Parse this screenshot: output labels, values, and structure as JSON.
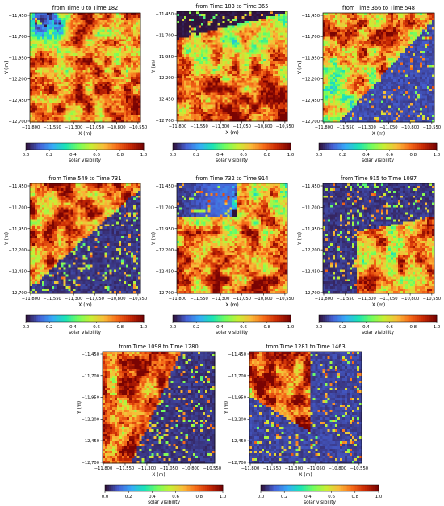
{
  "figure": {
    "colorbar_label": "solar visibility",
    "colorbar_ticks": [
      "0.0",
      "0.2",
      "0.4",
      "0.6",
      "0.8",
      "1.0"
    ],
    "colormap_stops": [
      "#30123b",
      "#4662d7",
      "#36aaf9",
      "#1ae4b6",
      "#72fe5e",
      "#c8ef34",
      "#faba39",
      "#f66b19",
      "#ca2a04",
      "#7a0403"
    ],
    "background_color": "#30123b"
  },
  "chart_data": [
    {
      "type": "heatmap",
      "title": "from Time 0 to Time 182",
      "xlabel": "X (m)",
      "ylabel": "Y (m)",
      "xticks": [
        "−11,800",
        "−11,550",
        "−11,300",
        "−11,050",
        "−10,800",
        "−10,550"
      ],
      "yticks": [
        "−11,450",
        "−11,700",
        "−11,950",
        "−12,200",
        "−12,450",
        "−12,700"
      ],
      "xlim": [
        -11800,
        -10500
      ],
      "ylim": [
        -12700,
        -11400
      ],
      "value_range": [
        0.0,
        1.0
      ],
      "colorbar_label": "solar visibility",
      "dominant_pattern": "mostly high visibility, low region at top-left"
    },
    {
      "type": "heatmap",
      "title": "from Time 183 to Time 365",
      "xlabel": "X (m)",
      "ylabel": "Y (m)",
      "xticks": [
        "−11,800",
        "−11,550",
        "−11,300",
        "−11,050",
        "−10,800",
        "−10,550"
      ],
      "yticks": [
        "−11,450",
        "−11,700",
        "−11,950",
        "−12,200",
        "−12,450",
        "−12,700"
      ],
      "xlim": [
        -11800,
        -10500
      ],
      "ylim": [
        -12700,
        -11400
      ],
      "value_range": [
        0.0,
        1.0
      ],
      "colorbar_label": "solar visibility",
      "dominant_pattern": "low at top, high in lower half"
    },
    {
      "type": "heatmap",
      "title": "from Time 366 to Time 548",
      "xlabel": "X (m)",
      "ylabel": "Y (m)",
      "xticks": [
        "−11,800",
        "−11,550",
        "−11,300",
        "−11,050",
        "−10,800",
        "−10,550"
      ],
      "yticks": [
        "−11,450",
        "−11,700",
        "−11,950",
        "−12,200",
        "−12,450",
        "−12,700"
      ],
      "xlim": [
        -11800,
        -10500
      ],
      "ylim": [
        -12700,
        -11400
      ],
      "value_range": [
        0.0,
        1.0
      ],
      "colorbar_label": "solar visibility",
      "dominant_pattern": "high at top and left, low at right"
    },
    {
      "type": "heatmap",
      "title": "from Time 549 to Time 731",
      "xlabel": "X (m)",
      "ylabel": "Y (m)",
      "xticks": [
        "−11,800",
        "−11,550",
        "−11,300",
        "−11,050",
        "−10,800",
        "−10,550"
      ],
      "yticks": [
        "−11,450",
        "−11,700",
        "−11,950",
        "−12,200",
        "−12,450",
        "−12,700"
      ],
      "xlim": [
        -11800,
        -10500
      ],
      "ylim": [
        -12700,
        -11400
      ],
      "value_range": [
        0.0,
        1.0
      ],
      "colorbar_label": "solar visibility",
      "dominant_pattern": "high at upper-left, low at lower-right"
    },
    {
      "type": "heatmap",
      "title": "from Time 732 to Time 914",
      "xlabel": "X (m)",
      "ylabel": "Y (m)",
      "xticks": [
        "−11,800",
        "−11,550",
        "−11,300",
        "−11,050",
        "−10,800",
        "−10,550"
      ],
      "yticks": [
        "−11,450",
        "−11,700",
        "−11,950",
        "−12,200",
        "−12,450",
        "−12,700"
      ],
      "xlim": [
        -11800,
        -10500
      ],
      "ylim": [
        -12700,
        -11400
      ],
      "value_range": [
        0.0,
        1.0
      ],
      "colorbar_label": "solar visibility",
      "dominant_pattern": "low at top-left, high in lower half"
    },
    {
      "type": "heatmap",
      "title": "from Time 915 to Time 1097",
      "xlabel": "X (m)",
      "ylabel": "Y (m)",
      "xticks": [
        "−11,800",
        "−11,550",
        "−11,300",
        "−11,050",
        "−10,800",
        "−10,550"
      ],
      "yticks": [
        "−11,450",
        "−11,700",
        "−11,950",
        "−12,200",
        "−12,450",
        "−12,700"
      ],
      "xlim": [
        -11800,
        -10500
      ],
      "ylim": [
        -12700,
        -11400
      ],
      "value_range": [
        0.0,
        1.0
      ],
      "colorbar_label": "solar visibility",
      "dominant_pattern": "mostly low, high in lower-right"
    },
    {
      "type": "heatmap",
      "title": "from Time 1098 to Time 1280",
      "xlabel": "X (m)",
      "ylabel": "Y (m)",
      "xticks": [
        "−11,800",
        "−11,550",
        "−11,300",
        "−11,050",
        "−10,800",
        "−10,550"
      ],
      "yticks": [
        "−11,450",
        "−11,700",
        "−11,950",
        "−12,200",
        "−12,450",
        "−12,700"
      ],
      "xlim": [
        -11800,
        -10500
      ],
      "ylim": [
        -12700,
        -11400
      ],
      "value_range": [
        0.0,
        1.0
      ],
      "colorbar_label": "solar visibility",
      "dominant_pattern": "high on left half, low on right half"
    },
    {
      "type": "heatmap",
      "title": "from Time 1281 to Time 1463",
      "xlabel": "X (m)",
      "ylabel": "Y (m)",
      "xticks": [
        "−11,800",
        "−11,550",
        "−11,300",
        "−11,050",
        "−10,800",
        "−10,550"
      ],
      "yticks": [
        "−11,450",
        "−11,700",
        "−11,950",
        "−12,200",
        "−12,450",
        "−12,700"
      ],
      "xlim": [
        -11800,
        -10500
      ],
      "ylim": [
        -12700,
        -11400
      ],
      "value_range": [
        0.0,
        1.0
      ],
      "colorbar_label": "solar visibility",
      "dominant_pattern": "high at upper-left, low elsewhere"
    }
  ]
}
